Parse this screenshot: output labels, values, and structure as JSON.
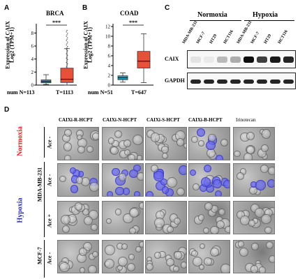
{
  "panels": {
    "a": {
      "letter": "A",
      "title": "BRCA",
      "ylabel_line1": "Expression of CAIX",
      "ylabel_line2": "Log2 (TPM+1)",
      "sig": "***",
      "xlabels": [
        "num N=113",
        "T=1113"
      ],
      "yticks": [
        "0",
        "2",
        "4",
        "6",
        "8"
      ]
    },
    "b": {
      "letter": "B",
      "title": "COAD",
      "ylabel_line1": "Expression of CAIX",
      "ylabel_line2": "Log2 (TPM+1)",
      "sig": "***",
      "xlabels": [
        "num N=51",
        "T=647"
      ],
      "yticks": [
        "0",
        "2",
        "4",
        "6",
        "8",
        "10",
        "12"
      ]
    },
    "c": {
      "letter": "C",
      "group_normoxia": "Normoxia",
      "group_hypoxia": "Hypoxia",
      "lanes": [
        "MDA-MB-231",
        "MCF-7",
        "HT29",
        "HCT116",
        "MDA-MB-231",
        "MCF-7",
        "HT29",
        "HCT116"
      ],
      "rows": [
        "CAIX",
        "GAPDH"
      ]
    },
    "d": {
      "letter": "D",
      "columns": [
        "CAIXi-R-HCPT",
        "CAIXi-N-HCPT",
        "CAIXi-S-HCPT",
        "CAIXi-B-HCPT",
        "Irinotecan"
      ],
      "normoxia_label": "Normoxia",
      "hypoxia_label": "Hypoxia",
      "cell_mda": "MDA-MB-231",
      "cell_mcf": "MCF-7",
      "row_ace": [
        "Ace -",
        "Ace -",
        "Ace +",
        "Ace -"
      ]
    }
  },
  "colors": {
    "box_normal": "#2a9cb8",
    "box_tumor": "#e8503a",
    "normoxia_red": "#e02020",
    "hypoxia_blue": "#2a2ab8"
  },
  "chart_data": [
    {
      "type": "box",
      "title": "BRCA",
      "ylabel": "Expression of CAIX Log2 (TPM+1)",
      "ylim": [
        0,
        9
      ],
      "categories": [
        "num N=113",
        "T=1113"
      ],
      "boxes": [
        {
          "name": "N",
          "min": 0.1,
          "q1": 0.35,
          "median": 0.55,
          "q3": 0.8,
          "max": 1.6
        },
        {
          "name": "T",
          "min": 0.0,
          "q1": 0.4,
          "median": 0.9,
          "q3": 2.6,
          "max": 5.6
        }
      ],
      "significance": "***"
    },
    {
      "type": "box",
      "title": "COAD",
      "ylabel": "Expression of CAIX Log2 (TPM+1)",
      "ylim": [
        0,
        12
      ],
      "categories": [
        "num N=51",
        "T=647"
      ],
      "boxes": [
        {
          "name": "N",
          "min": 0.6,
          "q1": 1.1,
          "median": 1.5,
          "q3": 1.9,
          "max": 2.5
        },
        {
          "name": "T",
          "min": 0.5,
          "q1": 3.5,
          "median": 4.9,
          "q3": 6.9,
          "max": 10.5
        }
      ],
      "significance": "***"
    }
  ]
}
